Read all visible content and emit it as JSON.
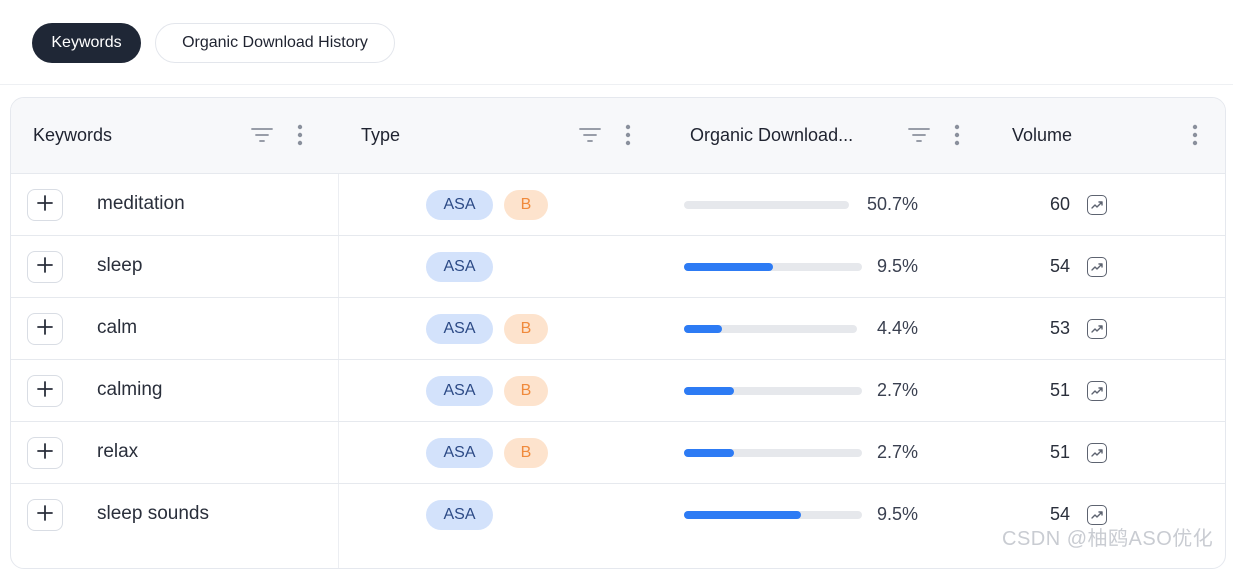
{
  "tabs": [
    {
      "label": "Keywords",
      "active": true
    },
    {
      "label": "Organic Download History",
      "active": false
    }
  ],
  "table": {
    "columns": [
      {
        "label": "Keywords",
        "icons": [
          "filter-icon",
          "more-vert-icon"
        ]
      },
      {
        "label": "Type",
        "icons": [
          "filter-icon",
          "more-vert-icon"
        ]
      },
      {
        "label": "Organic Download...",
        "icons": [
          "filter-icon",
          "more-vert-icon"
        ]
      },
      {
        "label": "Volume",
        "icons": [
          "more-vert-icon"
        ]
      }
    ],
    "rows": [
      {
        "keyword": "meditation",
        "types": [
          "ASA",
          "B"
        ],
        "organic_pct": "50.7%",
        "organic_fill": 0.0,
        "volume": "60"
      },
      {
        "keyword": "sleep",
        "types": [
          "ASA"
        ],
        "organic_pct": "9.5%",
        "organic_fill": 0.5,
        "volume": "54"
      },
      {
        "keyword": "calm",
        "types": [
          "ASA",
          "B"
        ],
        "organic_pct": "4.4%",
        "organic_fill": 0.22,
        "volume": "53"
      },
      {
        "keyword": "calming",
        "types": [
          "ASA",
          "B"
        ],
        "organic_pct": "2.7%",
        "organic_fill": 0.28,
        "volume": "51"
      },
      {
        "keyword": "relax",
        "types": [
          "ASA",
          "B"
        ],
        "organic_pct": "2.7%",
        "organic_fill": 0.28,
        "volume": "51"
      },
      {
        "keyword": "sleep sounds",
        "types": [
          "ASA"
        ],
        "organic_pct": "9.5%",
        "organic_fill": 0.66,
        "volume": "54"
      }
    ]
  },
  "watermark": "CSDN @柚鸥ASO优化",
  "colors": {
    "accent": "#2d7bf4",
    "asa_badge": "#d3e2fb",
    "b_badge": "#fde3cd",
    "active_tab": "#1f2736"
  }
}
